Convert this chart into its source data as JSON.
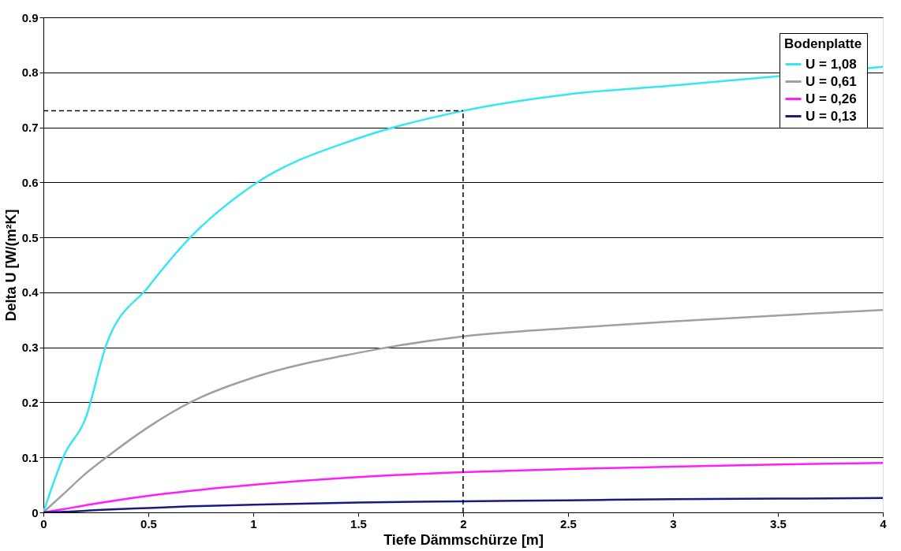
{
  "chart_data": {
    "type": "line",
    "xlabel": "Tiefe Dämmschürze [m]",
    "ylabel": "Delta U [W/(m²K]",
    "legend_title": "Bodenplatte",
    "x": [
      0,
      0.1,
      0.2,
      0.3,
      0.5,
      0.7,
      1,
      1.5,
      2,
      2.5,
      3,
      3.5,
      4
    ],
    "series": [
      {
        "name": "U = 1,08",
        "color": "#33e8f0",
        "values": [
          0,
          0.105,
          0.17,
          0.305,
          0.41,
          0.5,
          0.595,
          0.68,
          0.73,
          0.76,
          0.776,
          0.793,
          0.81
        ]
      },
      {
        "name": "U = 0,61",
        "color": "#a0a0a0",
        "values": [
          0,
          0.035,
          0.07,
          0.1,
          0.155,
          0.2,
          0.245,
          0.29,
          0.32,
          0.335,
          0.347,
          0.358,
          0.368
        ]
      },
      {
        "name": "U = 0,26",
        "color": "#ff1cff",
        "values": [
          0,
          0.006,
          0.013,
          0.019,
          0.03,
          0.039,
          0.05,
          0.064,
          0.073,
          0.079,
          0.083,
          0.087,
          0.09
        ]
      },
      {
        "name": "U = 0,13",
        "color": "#1a1a80",
        "values": [
          0,
          0.001,
          0.003,
          0.005,
          0.008,
          0.011,
          0.014,
          0.018,
          0.02,
          0.022,
          0.024,
          0.025,
          0.026
        ]
      }
    ],
    "xlim": [
      0,
      4
    ],
    "xticks": [
      0,
      0.5,
      1,
      1.5,
      2,
      2.5,
      3,
      3.5,
      4
    ],
    "ylim": [
      0,
      0.9
    ],
    "yticks": [
      0,
      0.1,
      0.2,
      0.3,
      0.4,
      0.5,
      0.6,
      0.7,
      0.8,
      0.9
    ],
    "ref_lines": [
      {
        "axis": "y",
        "value": 0.73,
        "color": "#000000",
        "line_style": "dashed"
      },
      {
        "axis": "x",
        "value": 2,
        "color": "#000000",
        "line_style": "dashed"
      }
    ],
    "grid": "y",
    "legend": "top right",
    "line_style": "solid",
    "marker": "none"
  }
}
